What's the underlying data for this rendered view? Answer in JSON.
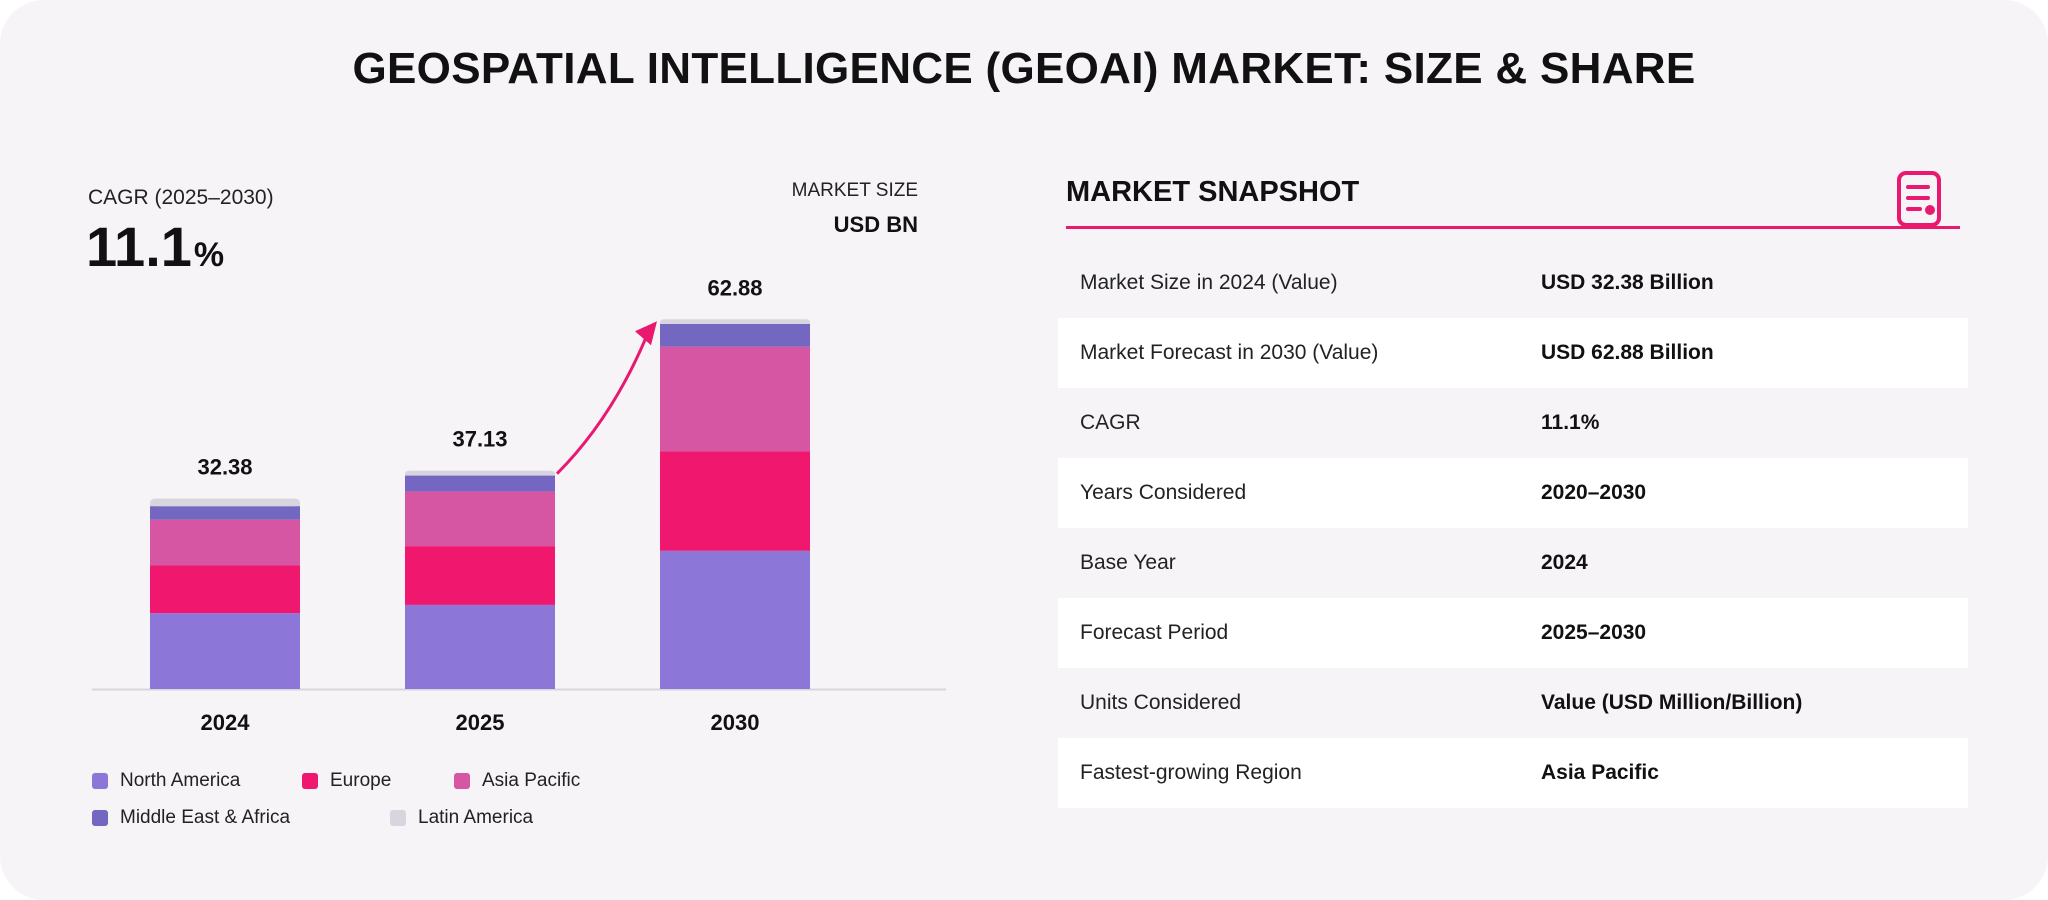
{
  "title": "GEOSPATIAL INTELLIGENCE (GEOAI) MARKET: SIZE & SHARE",
  "cagr": {
    "label": "CAGR (2025–2030)",
    "value": "11.1",
    "unit": "%"
  },
  "market_size": {
    "label": "MARKET SIZE",
    "unit": "USD BN"
  },
  "chart_data": {
    "type": "bar",
    "stacked": true,
    "categories": [
      "2024",
      "2025",
      "2030"
    ],
    "totals": [
      "32.38",
      "37.13",
      "62.88"
    ],
    "series": [
      {
        "name": "North America",
        "color": "#8c76d7",
        "values": [
          12.9,
          14.3,
          23.5
        ]
      },
      {
        "name": "Europe",
        "color": "#f0186e",
        "values": [
          8.1,
          10.0,
          16.9
        ]
      },
      {
        "name": "Asia Pacific",
        "color": "#d656a3",
        "values": [
          7.8,
          9.3,
          17.8
        ]
      },
      {
        "name": "Middle East & Africa",
        "color": "#7467c2",
        "values": [
          2.3,
          2.7,
          3.9
        ]
      },
      {
        "name": "Latin America",
        "color": "#d8d5de",
        "values": [
          1.28,
          0.83,
          0.78
        ]
      }
    ],
    "ylim": [
      0,
      70
    ],
    "grid": false,
    "legend_position": "bottom-left",
    "annotation": "growth arrow from 2025 to 2030"
  },
  "snapshot": {
    "title": "MARKET SNAPSHOT",
    "icon": "document-icon",
    "accent": "#e8196f",
    "rows": [
      {
        "key": "Market Size in 2024 (Value)",
        "value": "USD 32.38 Billion"
      },
      {
        "key": "Market Forecast in 2030 (Value)",
        "value": "USD 62.88 Billion"
      },
      {
        "key": "CAGR",
        "value": "11.1%"
      },
      {
        "key": "Years Considered",
        "value": "2020–2030"
      },
      {
        "key": "Base Year",
        "value": "2024"
      },
      {
        "key": "Forecast Period",
        "value": "2025–2030"
      },
      {
        "key": "Units Considered",
        "value": "Value (USD Million/Billion)"
      },
      {
        "key": "Fastest-growing Region",
        "value": "Asia Pacific"
      }
    ]
  }
}
